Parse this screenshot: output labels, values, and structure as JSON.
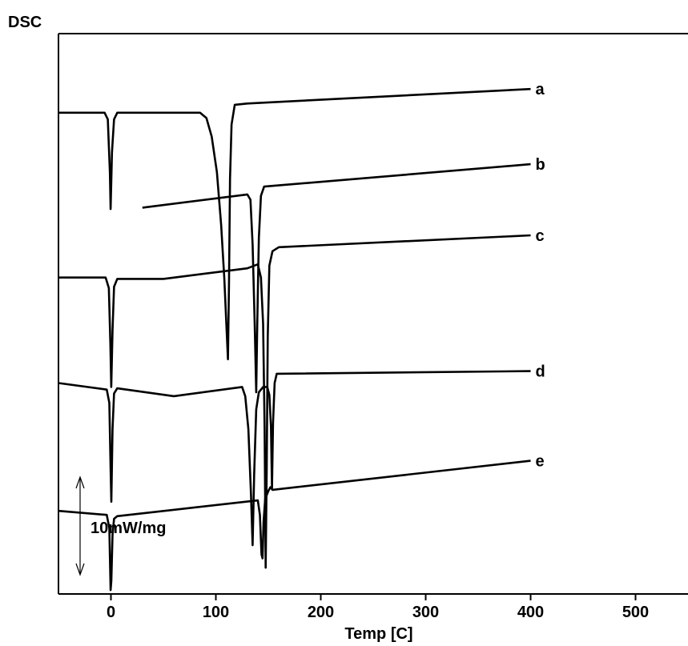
{
  "chart_data": {
    "type": "line",
    "ylabel": "DSC",
    "xlabel": "Temp  [C]",
    "xlim": [
      -50,
      550
    ],
    "xticks": [
      0,
      100,
      200,
      300,
      400,
      500
    ],
    "xtick_labels": [
      "0",
      "100",
      "200",
      "300",
      "400",
      "500"
    ],
    "y_units": "mW/mg",
    "scale_bar": {
      "label": "10mW/mg",
      "value": 10
    },
    "ylim": [
      -36.5,
      6
    ],
    "grid": false,
    "line_color": "#000000",
    "series": [
      {
        "name": "a",
        "points": [
          [
            -50,
            0
          ],
          [
            -6,
            0
          ],
          [
            -3,
            -0.5
          ],
          [
            -1,
            -4.5
          ],
          [
            -0.3,
            -7.3
          ],
          [
            1,
            -3
          ],
          [
            3,
            -0.5
          ],
          [
            6,
            0
          ],
          [
            85,
            0
          ],
          [
            91,
            -0.4
          ],
          [
            96,
            -1.8
          ],
          [
            101,
            -4.5
          ],
          [
            105,
            -8.5
          ],
          [
            108,
            -12.5
          ],
          [
            110,
            -16
          ],
          [
            111.5,
            -18.7
          ],
          [
            112.5,
            -13
          ],
          [
            113.5,
            -5
          ],
          [
            115,
            -0.9
          ],
          [
            118,
            0.6
          ],
          [
            130,
            0.7
          ],
          [
            400,
            1.8
          ]
        ]
      },
      {
        "name": "b",
        "points": [
          [
            30,
            -7.2
          ],
          [
            130,
            -6.2
          ],
          [
            133,
            -6.6
          ],
          [
            135,
            -10
          ],
          [
            137,
            -16
          ],
          [
            138.5,
            -21.2
          ],
          [
            139.5,
            -16
          ],
          [
            141,
            -9.5
          ],
          [
            143,
            -6.3
          ],
          [
            146,
            -5.6
          ],
          [
            400,
            -3.9
          ]
        ]
      },
      {
        "name": "c",
        "points": [
          [
            -50,
            -12.5
          ],
          [
            -5,
            -12.5
          ],
          [
            -2,
            -13.3
          ],
          [
            -0.5,
            -17.5
          ],
          [
            0.3,
            -20.8
          ],
          [
            1.5,
            -16.5
          ],
          [
            3,
            -13.2
          ],
          [
            6,
            -12.6
          ],
          [
            50,
            -12.6
          ],
          [
            130,
            -11.8
          ],
          [
            140,
            -11.5
          ],
          [
            143,
            -12.5
          ],
          [
            145,
            -16
          ],
          [
            146.5,
            -24
          ],
          [
            147.5,
            -34.5
          ],
          [
            148.5,
            -27
          ],
          [
            149.5,
            -17
          ],
          [
            151,
            -11.6
          ],
          [
            154,
            -10.5
          ],
          [
            160,
            -10.2
          ],
          [
            400,
            -9.3
          ]
        ]
      },
      {
        "name": "d",
        "points": [
          [
            -50,
            -20.5
          ],
          [
            -4,
            -21
          ],
          [
            -1.5,
            -22
          ],
          [
            -0.3,
            -27
          ],
          [
            0.4,
            -29.5
          ],
          [
            1.5,
            -24
          ],
          [
            3,
            -21.3
          ],
          [
            6,
            -20.9
          ],
          [
            60,
            -21.5
          ],
          [
            125,
            -20.8
          ],
          [
            128,
            -21.5
          ],
          [
            131,
            -24
          ],
          [
            133.5,
            -29
          ],
          [
            135,
            -32.8
          ],
          [
            136.5,
            -27.5
          ],
          [
            138.5,
            -22.5
          ],
          [
            141,
            -21.2
          ],
          [
            145,
            -20.8
          ],
          [
            149,
            -20.8
          ],
          [
            151,
            -21.4
          ],
          [
            152.5,
            -23.8
          ],
          [
            153.5,
            -28.5
          ],
          [
            154.5,
            -23.5
          ],
          [
            156,
            -20.5
          ],
          [
            158,
            -19.8
          ],
          [
            400,
            -19.6
          ]
        ]
      },
      {
        "name": "e",
        "points": [
          [
            -50,
            -30.2
          ],
          [
            -4,
            -30.5
          ],
          [
            -1.5,
            -31.5
          ],
          [
            -0.3,
            -36.2
          ],
          [
            0.4,
            -35.5
          ],
          [
            1.5,
            -32
          ],
          [
            3,
            -30.8
          ],
          [
            6,
            -30.6
          ],
          [
            140,
            -29.4
          ],
          [
            142,
            -30.5
          ],
          [
            143.5,
            -33.5
          ],
          [
            144.5,
            -33.8
          ],
          [
            145.5,
            -31
          ],
          [
            147,
            -29.3
          ],
          [
            150,
            -28.7
          ],
          [
            152,
            -28.4
          ],
          [
            154,
            -28.6
          ],
          [
            400,
            -26.4
          ]
        ]
      }
    ]
  }
}
